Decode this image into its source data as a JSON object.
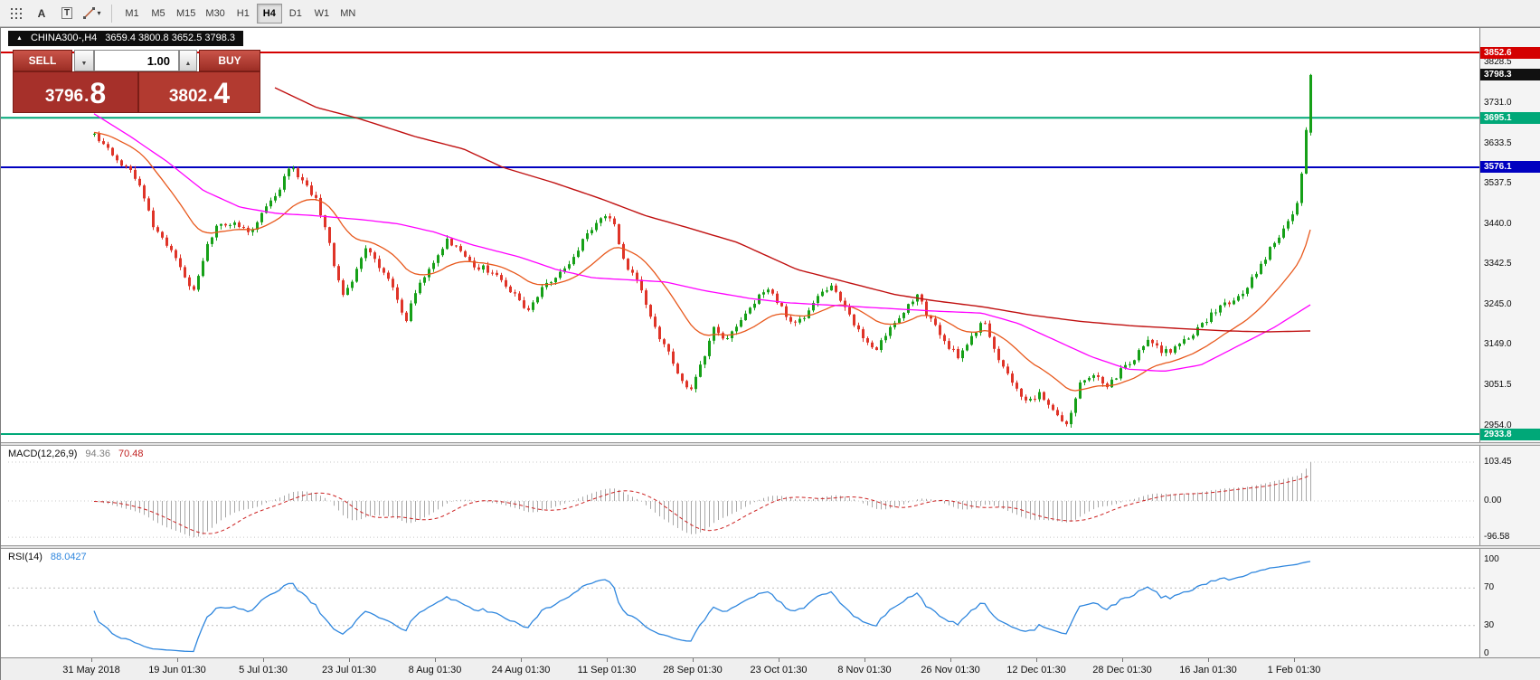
{
  "icons": {
    "symbol_marker": "▲",
    "text_label": "A",
    "text_box": "T",
    "dropdown_caret": "▾",
    "spinner_down": "▼",
    "spinner_up": "▲"
  },
  "toolbar": {
    "timeframes": [
      "M1",
      "M5",
      "M15",
      "M30",
      "H1",
      "H4",
      "D1",
      "W1",
      "MN"
    ],
    "active_timeframe": "H4"
  },
  "symbol_bar": {
    "symbol": "CHINA300-,H4",
    "ohlc": "3659.4 3800.8 3652.5 3798.3"
  },
  "trade_panel": {
    "sell_label": "SELL",
    "buy_label": "BUY",
    "volume": "1.00",
    "sell_price_main": "3796",
    "sell_price_dec": ".",
    "sell_price_big": "8",
    "buy_price_main": "3802",
    "buy_price_dec": ".",
    "buy_price_big": "4"
  },
  "chart_data": {
    "type": "candlestick",
    "symbol": "CHINA300-",
    "timeframe": "H4",
    "up_color": "#16a018",
    "down_color": "#df3428",
    "last_candle": {
      "open": 3659.4,
      "high": 3800.8,
      "low": 3652.5,
      "close": 3798.3
    },
    "current_price": 3798.3,
    "current_price_badge_color": "#111111",
    "axis_range": {
      "top": 3852.6,
      "bottom": 2933.8
    },
    "price_axis_ticks": [
      3828.5,
      3731.0,
      3633.5,
      3537.5,
      3440.0,
      3342.5,
      3245.0,
      3149.0,
      3051.5,
      2954.0
    ],
    "levels": [
      {
        "name": "resistance-line",
        "price": 3852.6,
        "color": "#d40000"
      },
      {
        "name": "upper-support-line",
        "price": 3695.1,
        "color": "#00a878"
      },
      {
        "name": "mid-support-line",
        "price": 3576.1,
        "color": "#0000c0"
      },
      {
        "name": "lower-support-line",
        "price": 2933.8,
        "color": "#00a878"
      }
    ],
    "n_candles": 270,
    "price_path": [
      [
        0.0,
        3660
      ],
      [
        0.01,
        3620
      ],
      [
        0.023,
        3585
      ],
      [
        0.035,
        3550
      ],
      [
        0.047,
        3445
      ],
      [
        0.057,
        3395
      ],
      [
        0.069,
        3350
      ],
      [
        0.081,
        3270
      ],
      [
        0.091,
        3375
      ],
      [
        0.103,
        3445
      ],
      [
        0.115,
        3440
      ],
      [
        0.127,
        3420
      ],
      [
        0.139,
        3465
      ],
      [
        0.151,
        3520
      ],
      [
        0.161,
        3585
      ],
      [
        0.171,
        3540
      ],
      [
        0.182,
        3500
      ],
      [
        0.191,
        3415
      ],
      [
        0.204,
        3260
      ],
      [
        0.214,
        3320
      ],
      [
        0.224,
        3385
      ],
      [
        0.234,
        3330
      ],
      [
        0.245,
        3290
      ],
      [
        0.256,
        3205
      ],
      [
        0.267,
        3300
      ],
      [
        0.278,
        3345
      ],
      [
        0.29,
        3400
      ],
      [
        0.301,
        3370
      ],
      [
        0.312,
        3340
      ],
      [
        0.323,
        3330
      ],
      [
        0.335,
        3300
      ],
      [
        0.346,
        3270
      ],
      [
        0.357,
        3230
      ],
      [
        0.368,
        3290
      ],
      [
        0.38,
        3310
      ],
      [
        0.391,
        3340
      ],
      [
        0.402,
        3400
      ],
      [
        0.414,
        3445
      ],
      [
        0.425,
        3460
      ],
      [
        0.436,
        3340
      ],
      [
        0.447,
        3310
      ],
      [
        0.459,
        3200
      ],
      [
        0.47,
        3140
      ],
      [
        0.481,
        3070
      ],
      [
        0.489,
        3035
      ],
      [
        0.499,
        3100
      ],
      [
        0.509,
        3190
      ],
      [
        0.52,
        3160
      ],
      [
        0.531,
        3200
      ],
      [
        0.542,
        3250
      ],
      [
        0.553,
        3290
      ],
      [
        0.564,
        3245
      ],
      [
        0.574,
        3190
      ],
      [
        0.586,
        3220
      ],
      [
        0.597,
        3280
      ],
      [
        0.608,
        3290
      ],
      [
        0.619,
        3230
      ],
      [
        0.631,
        3170
      ],
      [
        0.642,
        3130
      ],
      [
        0.653,
        3190
      ],
      [
        0.665,
        3230
      ],
      [
        0.676,
        3270
      ],
      [
        0.687,
        3210
      ],
      [
        0.698,
        3160
      ],
      [
        0.71,
        3120
      ],
      [
        0.721,
        3170
      ],
      [
        0.732,
        3210
      ],
      [
        0.743,
        3110
      ],
      [
        0.755,
        3060
      ],
      [
        0.766,
        3010
      ],
      [
        0.777,
        3030
      ],
      [
        0.788,
        2990
      ],
      [
        0.8,
        2950
      ],
      [
        0.811,
        3060
      ],
      [
        0.822,
        3080
      ],
      [
        0.833,
        3050
      ],
      [
        0.845,
        3090
      ],
      [
        0.856,
        3120
      ],
      [
        0.867,
        3160
      ],
      [
        0.879,
        3130
      ],
      [
        0.89,
        3140
      ],
      [
        0.901,
        3170
      ],
      [
        0.912,
        3200
      ],
      [
        0.924,
        3240
      ],
      [
        0.935,
        3250
      ],
      [
        0.946,
        3280
      ],
      [
        0.957,
        3330
      ],
      [
        0.969,
        3390
      ],
      [
        0.98,
        3430
      ],
      [
        0.9889,
        3490
      ],
      [
        0.9926,
        3560
      ],
      [
        0.9963,
        3662
      ],
      [
        1.0,
        3798.3
      ]
    ],
    "moving_averages": [
      {
        "name": "fast-ma",
        "color": "#e8581c",
        "period": 21
      },
      {
        "name": "medium-ma",
        "color": "#ff00ff",
        "width": 1.3,
        "path": [
          [
            0,
            3705
          ],
          [
            0.03,
            3650
          ],
          [
            0.06,
            3590
          ],
          [
            0.09,
            3520
          ],
          [
            0.12,
            3480
          ],
          [
            0.15,
            3465
          ],
          [
            0.18,
            3460
          ],
          [
            0.22,
            3450
          ],
          [
            0.25,
            3440
          ],
          [
            0.28,
            3420
          ],
          [
            0.31,
            3390
          ],
          [
            0.35,
            3360
          ],
          [
            0.38,
            3330
          ],
          [
            0.41,
            3310
          ],
          [
            0.44,
            3305
          ],
          [
            0.47,
            3300
          ],
          [
            0.5,
            3280
          ],
          [
            0.54,
            3260
          ],
          [
            0.57,
            3250
          ],
          [
            0.6,
            3245
          ],
          [
            0.63,
            3240
          ],
          [
            0.66,
            3235
          ],
          [
            0.69,
            3230
          ],
          [
            0.73,
            3225
          ],
          [
            0.76,
            3200
          ],
          [
            0.79,
            3160
          ],
          [
            0.82,
            3120
          ],
          [
            0.85,
            3090
          ],
          [
            0.88,
            3085
          ],
          [
            0.91,
            3100
          ],
          [
            0.94,
            3145
          ],
          [
            0.97,
            3190
          ],
          [
            1,
            3245
          ]
        ]
      },
      {
        "name": "slow-ma",
        "color": "#c01010",
        "width": 1.4,
        "path": [
          [
            0.147,
            3770
          ],
          [
            0.183,
            3720
          ],
          [
            0.216,
            3695
          ],
          [
            0.264,
            3650
          ],
          [
            0.304,
            3620
          ],
          [
            0.336,
            3576
          ],
          [
            0.377,
            3540
          ],
          [
            0.417,
            3500
          ],
          [
            0.453,
            3460
          ],
          [
            0.489,
            3430
          ],
          [
            0.529,
            3395
          ],
          [
            0.578,
            3330
          ],
          [
            0.618,
            3300
          ],
          [
            0.658,
            3270
          ],
          [
            0.69,
            3255
          ],
          [
            0.731,
            3240
          ],
          [
            0.771,
            3220
          ],
          [
            0.811,
            3205
          ],
          [
            0.851,
            3195
          ],
          [
            0.891,
            3188
          ],
          [
            0.932,
            3182
          ],
          [
            0.964,
            3180
          ],
          [
            1,
            3182
          ]
        ]
      }
    ],
    "time_labels": [
      "31 May 2018",
      "19 Jun 01:30",
      "5 Jul 01:30",
      "23 Jul 01:30",
      "8 Aug 01:30",
      "24 Aug 01:30",
      "11 Sep 01:30",
      "28 Sep 01:30",
      "23 Oct 01:30",
      "8 Nov 01:30",
      "26 Nov 01:30",
      "12 Dec 01:30",
      "28 Dec 01:30",
      "16 Jan 01:30",
      "1 Feb 01:30"
    ],
    "macd": {
      "label": "MACD(12,26,9)",
      "value_main": "94.36",
      "value_signal": "70.48",
      "fast": 12,
      "slow": 26,
      "signal": 9,
      "axis_labels": [
        "103.45",
        "0.00",
        "-96.58"
      ],
      "axis_values": [
        103.45,
        0,
        -96.58
      ],
      "histogram_color": "#a8a8a8",
      "signal_color": "#cc2222"
    },
    "rsi": {
      "label": "RSI(14)",
      "value": "88.0427",
      "period": 14,
      "line_color": "#2e86de",
      "levels": [
        70,
        30
      ],
      "axis_labels": [
        "100",
        "70",
        "30",
        "0"
      ],
      "axis_values": [
        100,
        70,
        30,
        0
      ]
    }
  }
}
